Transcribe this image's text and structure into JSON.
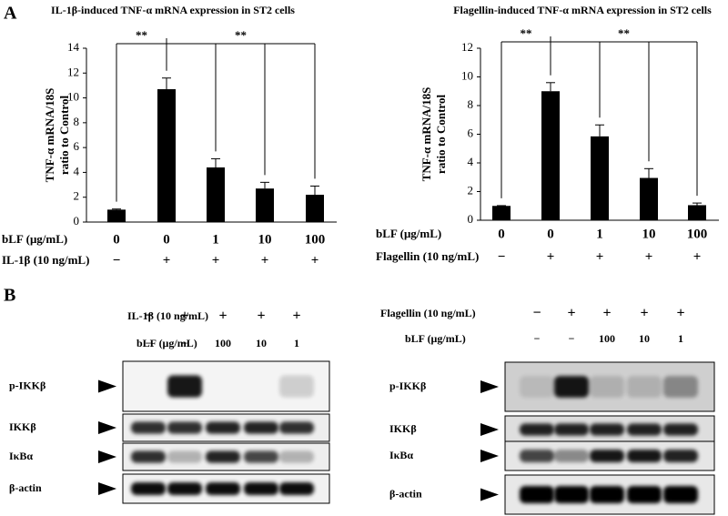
{
  "panel_a": {
    "label": "A"
  },
  "chart_data": [
    {
      "type": "bar",
      "title": "IL-1β-induced TNF-α mRNA expression in ST2 cells",
      "ylabel": [
        "TNF-α mRNA/18S",
        "ratio to Control"
      ],
      "values": [
        1.0,
        10.7,
        4.4,
        2.7,
        2.2
      ],
      "errors": [
        0.05,
        0.9,
        0.7,
        0.5,
        0.7
      ],
      "color": "#000000",
      "ylim": [
        0,
        14
      ],
      "yticks": [
        0,
        2,
        4,
        6,
        8,
        10,
        12,
        14
      ],
      "annotations": [
        "**",
        "**"
      ],
      "conditions": [
        {
          "label": "bLF (μg/mL)",
          "cells": [
            "0",
            "0",
            "1",
            "10",
            "100"
          ]
        },
        {
          "label": "IL-1β (10 ng/mL)",
          "cells": [
            "−",
            "+",
            "+",
            "+",
            "+"
          ]
        }
      ]
    },
    {
      "type": "bar",
      "title": "Flagellin-induced TNF-α mRNA expression in ST2 cells",
      "ylabel": [
        "TNF-α mRNA/18S",
        "ratio to Control"
      ],
      "values": [
        1.0,
        9.0,
        5.85,
        2.95,
        1.05
      ],
      "errors": [
        0.02,
        0.6,
        0.8,
        0.65,
        0.15
      ],
      "color": "#000000",
      "ylim": [
        0,
        12
      ],
      "yticks": [
        0,
        2,
        4,
        6,
        8,
        10,
        12
      ],
      "annotations": [
        "**",
        "**"
      ],
      "conditions": [
        {
          "label": "bLF (μg/mL)",
          "cells": [
            "0",
            "0",
            "1",
            "10",
            "100"
          ]
        },
        {
          "label": "Flagellin (10 ng/mL)",
          "cells": [
            "−",
            "+",
            "+",
            "+",
            "+"
          ]
        }
      ]
    }
  ],
  "panel_b": {
    "label": "B",
    "blots": [
      {
        "conditions": [
          {
            "label": "IL-1β (10 ng/mL)",
            "cells": [
              "−",
              "+",
              "+",
              "+",
              "+"
            ]
          },
          {
            "label": "bLF (μg/mL)",
            "cells": [
              "−",
              "−",
              "100",
              "10",
              "1"
            ]
          }
        ],
        "bands": [
          "p-IKKβ",
          "IKKβ",
          "IκBα",
          "β-actin"
        ]
      },
      {
        "conditions": [
          {
            "label": "Flagellin (10 ng/mL)",
            "cells": [
              "−",
              "+",
              "+",
              "+",
              "+"
            ]
          },
          {
            "label": "bLF (μg/mL)",
            "cells": [
              "−",
              "−",
              "100",
              "10",
              "1"
            ]
          }
        ],
        "bands": [
          "p-IKKβ",
          "IKKβ",
          "IκBα",
          "β-actin"
        ]
      }
    ]
  }
}
